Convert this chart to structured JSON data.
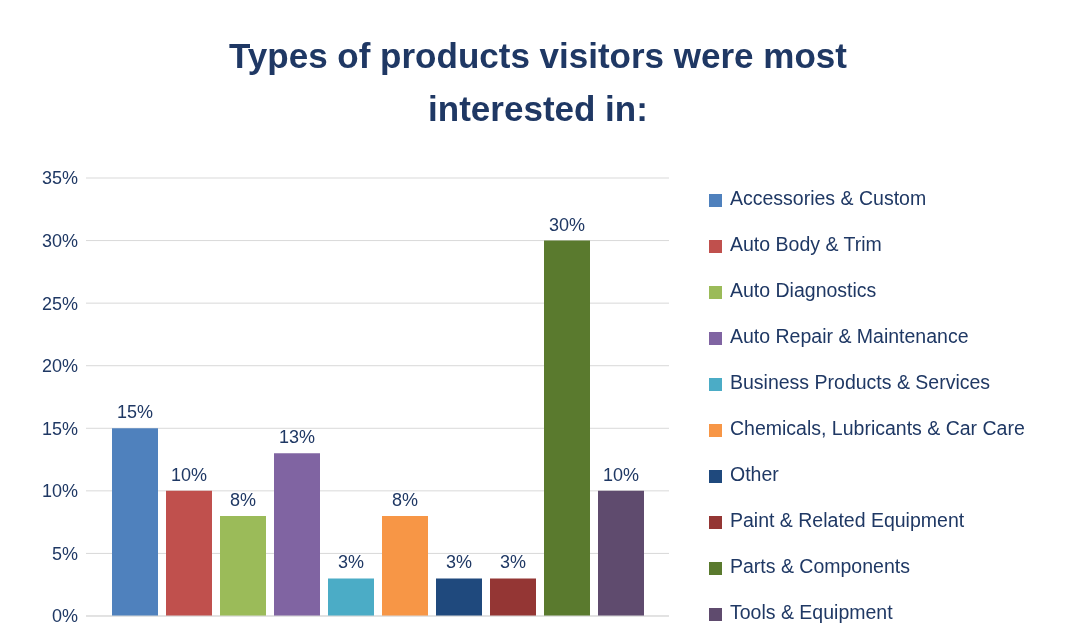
{
  "chart_data": {
    "type": "bar",
    "title": "Types of products visitors were most interested in:",
    "categories": [
      null
    ],
    "series": [
      {
        "name": "Accessories & Custom",
        "color": "#4f81bd",
        "values": [
          15
        ],
        "value_labels": [
          "15%"
        ]
      },
      {
        "name": "Auto Body & Trim",
        "color": "#c0504d",
        "values": [
          10
        ],
        "value_labels": [
          "10%"
        ]
      },
      {
        "name": "Auto Diagnostics",
        "color": "#9bbb59",
        "values": [
          8
        ],
        "value_labels": [
          "8%"
        ]
      },
      {
        "name": "Auto Repair & Maintenance",
        "color": "#8064a2",
        "values": [
          13
        ],
        "value_labels": [
          "13%"
        ]
      },
      {
        "name": "Business Products & Services",
        "color": "#4bacc6",
        "values": [
          3
        ],
        "value_labels": [
          "3%"
        ]
      },
      {
        "name": "Chemicals, Lubricants & Car Care",
        "color": "#f79646",
        "values": [
          8
        ],
        "value_labels": [
          "8%"
        ]
      },
      {
        "name": "Other",
        "color": "#1f497d",
        "values": [
          3
        ],
        "value_labels": [
          "3%"
        ]
      },
      {
        "name": "Paint & Related Equipment",
        "color": "#943634",
        "values": [
          3
        ],
        "value_labels": [
          "3%"
        ]
      },
      {
        "name": "Parts & Components",
        "color": "#5a7a2e",
        "values": [
          30
        ],
        "value_labels": [
          "30%"
        ]
      },
      {
        "name": "Tools & Equipment",
        "color": "#5f4b6e",
        "values": [
          10
        ],
        "value_labels": [
          "10%"
        ]
      }
    ],
    "ylim": [
      0,
      35
    ],
    "yticks": [
      {
        "value": 0,
        "label": "0%"
      },
      {
        "value": 5,
        "label": "5%"
      },
      {
        "value": 10,
        "label": "10%"
      },
      {
        "value": 15,
        "label": "15%"
      },
      {
        "value": 20,
        "label": "20%"
      },
      {
        "value": 25,
        "label": "25%"
      },
      {
        "value": 30,
        "label": "30%"
      },
      {
        "value": 35,
        "label": "35%"
      }
    ],
    "grid": "y",
    "legend": "right"
  }
}
